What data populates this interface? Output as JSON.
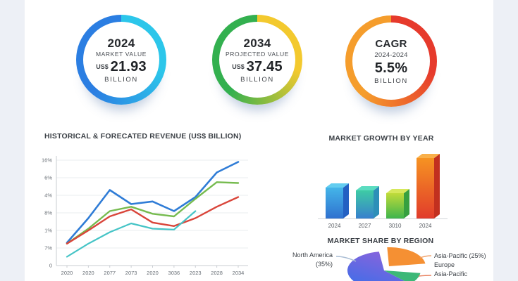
{
  "page": {
    "background": "#edf0f6",
    "card_background": "#ffffff"
  },
  "stats": [
    {
      "line1": "2024",
      "line2": "MARKET VALUE",
      "prefix": "US$",
      "value": "21.93",
      "line4": "BILLION",
      "ring": {
        "right": "#2cc6ea",
        "left": "#2b7ee2"
      }
    },
    {
      "line1": "2034",
      "line2": "PROJECTED VALUE",
      "prefix": "US$",
      "value": "37.45",
      "line4": "BILLION",
      "ring": {
        "right": "#f3c92e",
        "left": "#33b04f"
      }
    },
    {
      "line1": "CAGR",
      "line2": "2024-2024",
      "prefix": "",
      "value": "5.5%",
      "line4": "BILLION",
      "ring": {
        "right": "#e63a2c",
        "left": "#f59d2c"
      }
    }
  ],
  "chart_data": [
    {
      "type": "line",
      "title": "HISTORICAL & FORECATED REVENUE (US$ BILLION)",
      "x_labels": [
        "2020",
        "2020",
        "2077",
        "2073",
        "2020",
        "3036",
        "2023",
        "2028",
        "2034"
      ],
      "y_labels_top_to_bottom": [
        "16%",
        "6%",
        "4%",
        "8%",
        "1%",
        "7%",
        "0"
      ],
      "grid": true,
      "legend": "none",
      "value_scale_note": "values in gridline units, 0 = baseline, 6 = top gridline",
      "series": [
        {
          "name": "blue",
          "color": "#2f7cd6",
          "width": 2.6,
          "values": [
            1.3,
            2.7,
            4.3,
            3.5,
            3.65,
            3.1,
            3.9,
            5.3,
            5.9
          ]
        },
        {
          "name": "green",
          "color": "#76bb4f",
          "width": 2.4,
          "values": [
            1.25,
            2.1,
            3.1,
            3.35,
            2.95,
            2.8,
            3.8,
            4.75,
            4.7
          ]
        },
        {
          "name": "red",
          "color": "#d9453a",
          "width": 2.4,
          "values": [
            1.25,
            2.0,
            2.8,
            3.2,
            2.45,
            2.25,
            2.7,
            3.35,
            3.9
          ]
        },
        {
          "name": "teal",
          "color": "#45c4c6",
          "width": 2.2,
          "values": [
            0.5,
            1.25,
            1.9,
            2.4,
            2.1,
            2.05,
            3.1
          ]
        }
      ]
    },
    {
      "type": "bar",
      "title": "MARKET GROWTH BY YEAR",
      "categories": [
        "2024",
        "2027",
        "3010",
        "2024"
      ],
      "values": [
        44,
        40,
        36,
        86
      ],
      "value_scale_note": "bar heights in pixels as rendered; tallest bar ~2x others",
      "bars": [
        {
          "label": "2024",
          "front_top": "#44b5e9",
          "front_bottom": "#2f71cf",
          "side": "#2360c2",
          "top": "#63cdf0"
        },
        {
          "label": "2027",
          "front_top": "#3ecba4",
          "front_bottom": "#3780cd",
          "side": "#2d8fb8",
          "top": "#5bdcc0"
        },
        {
          "label": "3010",
          "front_top": "#c0db3a",
          "front_bottom": "#3eb44c",
          "side": "#36a040",
          "top": "#d6e85c"
        },
        {
          "label": "2024",
          "front_top": "#f69322",
          "front_bottom": "#e13b2b",
          "side": "#c2301f",
          "top": "#f9b04a"
        }
      ]
    },
    {
      "type": "pie",
      "title": "MARKET SHARE BY REGION",
      "labels_left": {
        "line1": "North America",
        "line2": "(35%)"
      },
      "labels_right": [
        "Asia-Pacific (25%)",
        "Europe",
        "Asia-Pacific"
      ],
      "slices": [
        {
          "name": "main-blue-purple",
          "color_top": "#8b63dc",
          "color_bottom": "#3e6ee8"
        },
        {
          "name": "orange-exploded",
          "color": "#f59033",
          "exploded": true
        },
        {
          "name": "green",
          "color": "#3cb878"
        }
      ],
      "connector_colors": {
        "left": "#a9bdd4",
        "right_top": "#f0a068",
        "right_bottom": "#e8815f"
      }
    }
  ]
}
